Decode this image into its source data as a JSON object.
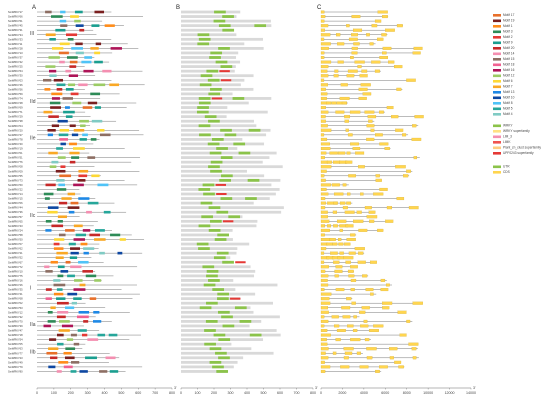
{
  "panels": {
    "a": {
      "label": "A"
    },
    "b": {
      "label": "B"
    },
    "c": {
      "label": "C"
    }
  },
  "genes": [
    "SmWRKY17",
    "SmWRKY66",
    "SmWRKY61",
    "SmWRKY45",
    "SmWRKY31",
    "SmWRKY34",
    "SmWRKY33",
    "SmWRKY11",
    "SmWRKY28",
    "SmWRKY13",
    "SmWRKY37",
    "SmWRKY42",
    "SmWRKY25",
    "SmWRKY64",
    "SmWRKY30",
    "SmWRKY03",
    "SmWRKY46",
    "SmWRKY56",
    "SmWRKY59",
    "SmWRKY74",
    "SmWRKY48",
    "SmWRKY69",
    "SmWRKY71",
    "SmWRKY29",
    "SmWRKY38",
    "SmWRKY04",
    "SmWRKY20",
    "SmWRKY27",
    "SmWRKY78",
    "SmWRKY40",
    "SmWRKY19",
    "SmWRKY01",
    "SmWRKY51",
    "SmWRKY76",
    "SmWRKY08",
    "SmWRKY09",
    "SmWRKY55",
    "SmWRKY73",
    "SmWRKY60",
    "SmWRKY22",
    "SmWRKY14",
    "SmWRKY15",
    "SmWRKY06",
    "SmWRKY44",
    "SmWRKY36",
    "SmWRKY57",
    "SmWRKY65",
    "SmWRKY43",
    "SmWRKY24",
    "SmWRKY58",
    "SmWRKY50",
    "SmWRKY07",
    "SmWRKY62",
    "SmWRKY21",
    "SmWRKY52",
    "SmWRKY67",
    "SmWRKY72",
    "SmWRKY10",
    "SmWRKY75",
    "SmWRKY16",
    "SmWRKY26",
    "SmWRKY35",
    "SmWRKY41",
    "SmWRKY68",
    "SmWRKY02",
    "SmWRKY53",
    "SmWRKY12",
    "SmWRKY32",
    "SmWRKY70",
    "SmWRKY39",
    "SmWRKY47",
    "SmWRKY18",
    "SmWRKY54",
    "SmWRKY05",
    "SmWRKY63",
    "SmWRKY77",
    "SmWRKY23",
    "SmWRKY49",
    "SmWRKY79",
    "SmWRKY80"
  ],
  "groups": [
    "III",
    "IId",
    "IIe",
    "IIc",
    "I",
    "IIa",
    "IIb"
  ],
  "axes": {
    "a": {
      "ticks": [
        "0",
        "100",
        "200",
        "300",
        "400",
        "500",
        "600",
        "700",
        "800"
      ],
      "end": "3'"
    },
    "b": {
      "ticks": [
        "0",
        "100",
        "200",
        "300",
        "400",
        "500",
        "600",
        "700",
        "800"
      ],
      "end": "3'",
      "start": "5'"
    },
    "c": {
      "ticks": [
        "0",
        "2000",
        "4000",
        "6000",
        "8000",
        "10000",
        "12000",
        "14000"
      ],
      "end": "3'"
    }
  },
  "motif_legend": [
    {
      "label": "Motif 17",
      "color": "#e8702a"
    },
    {
      "label": "Motif 19",
      "color": "#7a1f1f"
    },
    {
      "label": "Motif 1",
      "color": "#ff8c1a"
    },
    {
      "label": "Motif 3",
      "color": "#2e8b57"
    },
    {
      "label": "Motif 2",
      "color": "#e53935"
    },
    {
      "label": "Motif 9",
      "color": "#1a9e8f"
    },
    {
      "label": "Motif 20",
      "color": "#c62828"
    },
    {
      "label": "Motif 14",
      "color": "#f48fb1"
    },
    {
      "label": "Motif 15",
      "color": "#8d6e63"
    },
    {
      "label": "Motif 18",
      "color": "#f06292"
    },
    {
      "label": "Motif 16",
      "color": "#ad1457"
    },
    {
      "label": "Motif 12",
      "color": "#9ccc65"
    },
    {
      "label": "Motif 6",
      "color": "#fdd835"
    },
    {
      "label": "Motif 7",
      "color": "#f9a825"
    },
    {
      "label": "Motif 13",
      "color": "#1e88e5"
    },
    {
      "label": "Motif 10",
      "color": "#0d47a1"
    },
    {
      "label": "Motif 8",
      "color": "#4fc3f7"
    },
    {
      "label": "Motif 5",
      "color": "#26a69a"
    },
    {
      "label": "Motif 4",
      "color": "#80cbc4"
    }
  ],
  "domain_legend": [
    {
      "label": "WRKY",
      "color": "#8bc34a"
    },
    {
      "label": "WRKY superfamily",
      "color": "#ffe082"
    },
    {
      "label": "LIM_3",
      "color": "#f48fb1"
    },
    {
      "label": "LIMK",
      "color": "#ef5350"
    },
    {
      "label": "Plant_zn_clust superfamily",
      "color": "#ffcc80"
    },
    {
      "label": "UPF0243 superfamily",
      "color": "#e53935"
    }
  ],
  "gene_legend": [
    {
      "label": "UTR",
      "color": "#8bc34a"
    },
    {
      "label": "CDS",
      "color": "#ffd54f"
    }
  ],
  "colors": {
    "line": "#555555",
    "protein_bar": "#d9d9d9",
    "wrky": "#8bc34a",
    "cds": "#ffd54f",
    "utr": "#8bc34a"
  }
}
